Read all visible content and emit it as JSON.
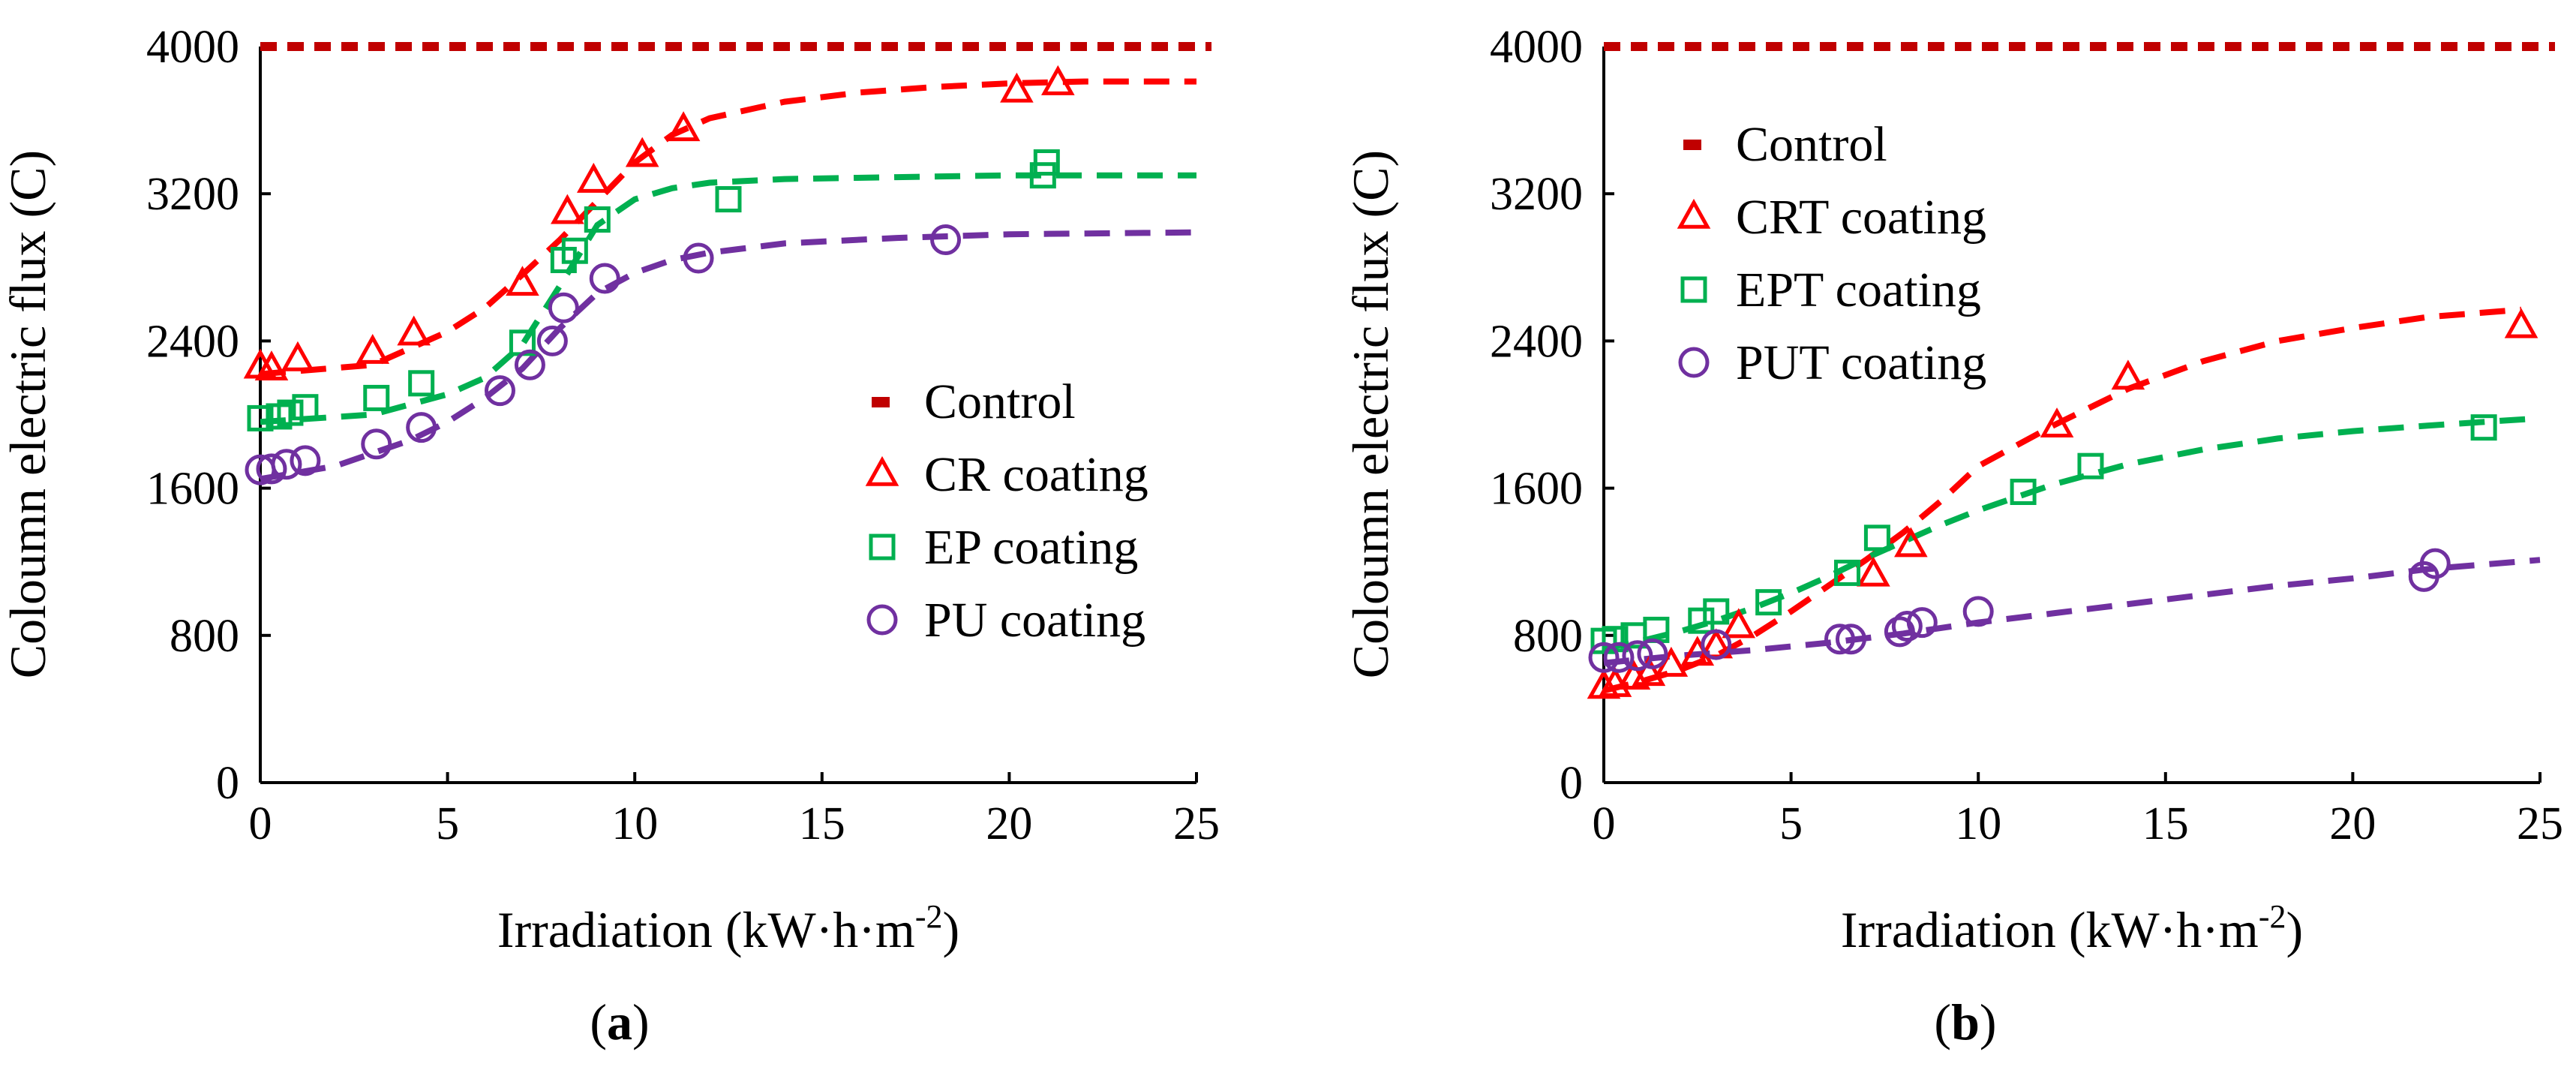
{
  "chart_data": [
    {
      "type": "scatter",
      "panel_label": "(a)",
      "panel_letter": "a",
      "xlabel_prefix": "Irradiation (kW·h·m",
      "xlabel_sup": "-2",
      "xlabel_suffix": ")",
      "ylabel": "Coloumn electric flux (C)",
      "xlim": [
        0,
        25
      ],
      "ylim": [
        0,
        4000
      ],
      "xticks": [
        0,
        5,
        10,
        15,
        20,
        25
      ],
      "yticks": [
        0,
        800,
        1600,
        2400,
        3200,
        4000
      ],
      "legend_position": "center-right",
      "series": [
        {
          "name": "Control",
          "kind": "control",
          "color": "#c00000",
          "value": 4000
        },
        {
          "name": "CR coating",
          "marker": "triangle",
          "color": "#ff0000",
          "points": [
            [
              0,
              2260
            ],
            [
              0.3,
              2250
            ],
            [
              1,
              2300
            ],
            [
              3,
              2340
            ],
            [
              4.1,
              2440
            ],
            [
              7,
              2710
            ],
            [
              8.2,
              3100
            ],
            [
              8.9,
              3270
            ],
            [
              10.2,
              3410
            ],
            [
              11.3,
              3550
            ],
            [
              20.2,
              3760
            ],
            [
              21.3,
              3800
            ]
          ],
          "fit": [
            [
              0,
              2220
            ],
            [
              3,
              2270
            ],
            [
              5,
              2450
            ],
            [
              6,
              2580
            ],
            [
              7,
              2760
            ],
            [
              8,
              2950
            ],
            [
              9,
              3160
            ],
            [
              10,
              3370
            ],
            [
              11,
              3520
            ],
            [
              12,
              3610
            ],
            [
              14,
              3700
            ],
            [
              16,
              3750
            ],
            [
              18,
              3780
            ],
            [
              20,
              3800
            ],
            [
              22,
              3810
            ],
            [
              25,
              3810
            ]
          ]
        },
        {
          "name": "EP coating",
          "marker": "square",
          "color": "#00b050",
          "points": [
            [
              0,
              1980
            ],
            [
              0.5,
              1990
            ],
            [
              0.8,
              2010
            ],
            [
              1.2,
              2040
            ],
            [
              3.1,
              2090
            ],
            [
              4.3,
              2170
            ],
            [
              7,
              2390
            ],
            [
              8.1,
              2840
            ],
            [
              8.4,
              2890
            ],
            [
              9,
              3060
            ],
            [
              12.5,
              3170
            ],
            [
              20.9,
              3300
            ],
            [
              21,
              3370
            ]
          ],
          "fit": [
            [
              0,
              1960
            ],
            [
              3,
              2000
            ],
            [
              5,
              2110
            ],
            [
              6,
              2200
            ],
            [
              7,
              2380
            ],
            [
              8,
              2700
            ],
            [
              9,
              3030
            ],
            [
              10,
              3170
            ],
            [
              11,
              3230
            ],
            [
              12,
              3260
            ],
            [
              14,
              3280
            ],
            [
              17,
              3290
            ],
            [
              20,
              3300
            ],
            [
              25,
              3300
            ]
          ]
        },
        {
          "name": "PU coating",
          "marker": "circle",
          "color": "#7030a0",
          "points": [
            [
              0,
              1700
            ],
            [
              0.3,
              1705
            ],
            [
              0.7,
              1730
            ],
            [
              1.2,
              1750
            ],
            [
              3.1,
              1840
            ],
            [
              4.3,
              1930
            ],
            [
              6.4,
              2130
            ],
            [
              7.2,
              2270
            ],
            [
              7.8,
              2400
            ],
            [
              8.1,
              2580
            ],
            [
              9.2,
              2740
            ],
            [
              11.7,
              2850
            ],
            [
              18.3,
              2950
            ]
          ],
          "fit": [
            [
              0,
              1650
            ],
            [
              2,
              1720
            ],
            [
              4,
              1860
            ],
            [
              5,
              1960
            ],
            [
              6,
              2090
            ],
            [
              7,
              2250
            ],
            [
              8,
              2470
            ],
            [
              9,
              2660
            ],
            [
              10,
              2770
            ],
            [
              11,
              2840
            ],
            [
              12,
              2880
            ],
            [
              14,
              2930
            ],
            [
              17,
              2960
            ],
            [
              20,
              2980
            ],
            [
              25,
              2990
            ]
          ]
        }
      ]
    },
    {
      "type": "scatter",
      "panel_label": "(b)",
      "panel_letter": "b",
      "xlabel_prefix": "Irradiation (kW·h·m",
      "xlabel_sup": "-2",
      "xlabel_suffix": ")",
      "ylabel": "Coloumn electric flux (C)",
      "xlim": [
        0,
        25
      ],
      "ylim": [
        0,
        4000
      ],
      "xticks": [
        0,
        5,
        10,
        15,
        20,
        25
      ],
      "yticks": [
        0,
        800,
        1600,
        2400,
        3200,
        4000
      ],
      "legend_position": "top-left",
      "series": [
        {
          "name": "Control",
          "kind": "control",
          "color": "#c00000",
          "value": 4000
        },
        {
          "name": "CRT coating",
          "marker": "triangle",
          "color": "#ff0000",
          "points": [
            [
              0,
              520
            ],
            [
              0.3,
              530
            ],
            [
              0.8,
              570
            ],
            [
              1.2,
              590
            ],
            [
              1.8,
              640
            ],
            [
              2.5,
              700
            ],
            [
              3,
              740
            ],
            [
              3.6,
              850
            ],
            [
              7.2,
              1130
            ],
            [
              8.2,
              1290
            ],
            [
              12.1,
              1940
            ],
            [
              14,
              2200
            ],
            [
              24.5,
              2480
            ]
          ],
          "fit": [
            [
              0,
              500
            ],
            [
              1,
              550
            ],
            [
              2,
              610
            ],
            [
              3,
              690
            ],
            [
              4,
              800
            ],
            [
              5,
              930
            ],
            [
              6,
              1070
            ],
            [
              7,
              1210
            ],
            [
              8,
              1360
            ],
            [
              9,
              1530
            ],
            [
              10,
              1720
            ],
            [
              12,
              1940
            ],
            [
              14,
              2140
            ],
            [
              16,
              2290
            ],
            [
              18,
              2400
            ],
            [
              20,
              2470
            ],
            [
              22,
              2530
            ],
            [
              24.5,
              2570
            ]
          ]
        },
        {
          "name": "EPT coating",
          "marker": "square",
          "color": "#00b050",
          "points": [
            [
              0,
              770
            ],
            [
              0.3,
              780
            ],
            [
              0.8,
              800
            ],
            [
              1.4,
              830
            ],
            [
              2.6,
              880
            ],
            [
              3,
              930
            ],
            [
              4.4,
              980
            ],
            [
              6.5,
              1140
            ],
            [
              7.3,
              1330
            ],
            [
              11.2,
              1580
            ],
            [
              13,
              1720
            ],
            [
              23.5,
              1930
            ]
          ],
          "fit": [
            [
              0,
              730
            ],
            [
              1,
              770
            ],
            [
              2,
              820
            ],
            [
              3,
              880
            ],
            [
              4,
              950
            ],
            [
              5,
              1030
            ],
            [
              6,
              1120
            ],
            [
              7,
              1220
            ],
            [
              8,
              1310
            ],
            [
              9,
              1400
            ],
            [
              10,
              1480
            ],
            [
              12,
              1620
            ],
            [
              14,
              1730
            ],
            [
              16,
              1810
            ],
            [
              18,
              1870
            ],
            [
              20,
              1910
            ],
            [
              22,
              1940
            ],
            [
              25,
              1980
            ]
          ]
        },
        {
          "name": "PUT coating",
          "marker": "circle",
          "color": "#7030a0",
          "points": [
            [
              0,
              680
            ],
            [
              0.4,
              680
            ],
            [
              0.9,
              690
            ],
            [
              1.3,
              700
            ],
            [
              3,
              750
            ],
            [
              6.3,
              780
            ],
            [
              6.6,
              780
            ],
            [
              7.9,
              820
            ],
            [
              8.1,
              850
            ],
            [
              8.5,
              870
            ],
            [
              10,
              930
            ],
            [
              21.9,
              1120
            ],
            [
              22.2,
              1190
            ]
          ],
          "fit": [
            [
              0,
              650
            ],
            [
              2,
              690
            ],
            [
              4,
              720
            ],
            [
              6,
              760
            ],
            [
              8,
              810
            ],
            [
              10,
              870
            ],
            [
              12,
              920
            ],
            [
              14,
              970
            ],
            [
              16,
              1020
            ],
            [
              18,
              1070
            ],
            [
              20,
              1110
            ],
            [
              22,
              1160
            ],
            [
              25,
              1210
            ]
          ]
        }
      ]
    }
  ]
}
